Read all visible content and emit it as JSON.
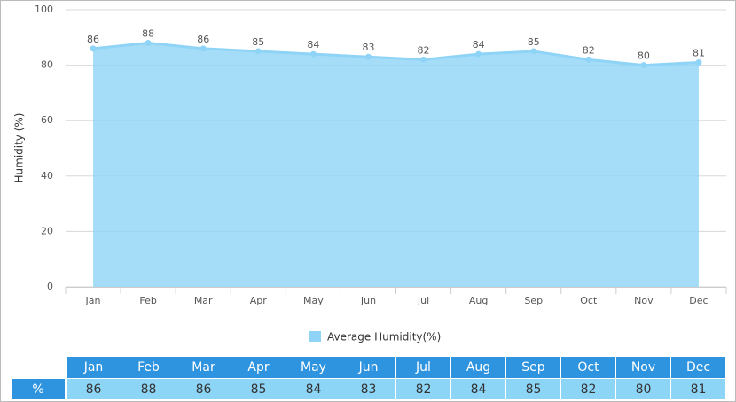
{
  "chart_data": {
    "type": "area",
    "y_label": "Humidity (%)",
    "categories": [
      "Jan",
      "Feb",
      "Mar",
      "Apr",
      "May",
      "Jun",
      "Jul",
      "Aug",
      "Sep",
      "Oct",
      "Nov",
      "Dec"
    ],
    "series": [
      {
        "name": "Average Humidity(%)",
        "color": "#8fd4f6",
        "values": [
          86,
          88,
          86,
          85,
          84,
          83,
          82,
          84,
          85,
          82,
          80,
          81
        ]
      }
    ],
    "ylim": [
      0,
      100
    ],
    "yticks": [
      0,
      20,
      40,
      60,
      80,
      100
    ],
    "grid": true,
    "legend": "bottom",
    "table_label": "%"
  }
}
